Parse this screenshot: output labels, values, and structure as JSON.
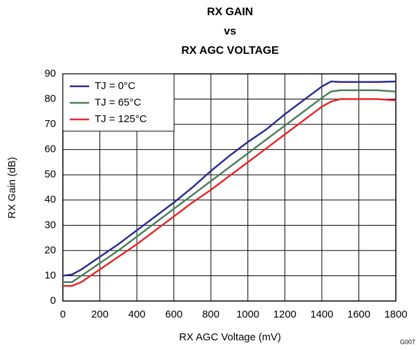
{
  "chart_data": {
    "type": "line",
    "title": [
      "RX GAIN",
      "vs",
      "RX AGC VOLTAGE"
    ],
    "x_label": "RX AGC Voltage (mV)",
    "y_label": "RX Gain (dB)",
    "figure_id": "G007",
    "x": [
      0,
      50,
      100,
      200,
      300,
      400,
      500,
      600,
      700,
      800,
      900,
      1000,
      1100,
      1200,
      1300,
      1400,
      1450,
      1500,
      1600,
      1700,
      1800
    ],
    "series": [
      {
        "name": "TJ = 0°C",
        "color": "#2b2b8f",
        "values": [
          10,
          10.5,
          12.5,
          17.5,
          22.5,
          28,
          33.5,
          39,
          45,
          51.5,
          57.5,
          63,
          68,
          74,
          79.5,
          85,
          87,
          86.8,
          86.8,
          86.8,
          87
        ]
      },
      {
        "name": "TJ = 65°C",
        "color": "#4a7f5a",
        "values": [
          7.5,
          7.5,
          10,
          15,
          20,
          25.5,
          31,
          36.5,
          42,
          47.5,
          53,
          58.5,
          64,
          69.5,
          75,
          80.5,
          83,
          83.5,
          83.5,
          83.5,
          83
        ]
      },
      {
        "name": "TJ = 125°C",
        "color": "#e8262b",
        "values": [
          6,
          6,
          7.5,
          12.5,
          17.5,
          22.5,
          28,
          33.5,
          39,
          44,
          49.5,
          55,
          60.5,
          66,
          71.5,
          77,
          79,
          80,
          80,
          80,
          79.5
        ]
      }
    ],
    "xlim": [
      0,
      1800
    ],
    "xticks": [
      0,
      200,
      400,
      600,
      800,
      1000,
      1200,
      1400,
      1600,
      1800
    ],
    "ylim": [
      0,
      90
    ],
    "yticks": [
      0,
      10,
      20,
      30,
      40,
      50,
      60,
      70,
      80,
      90
    ],
    "grid": true,
    "legend": "upper left"
  }
}
